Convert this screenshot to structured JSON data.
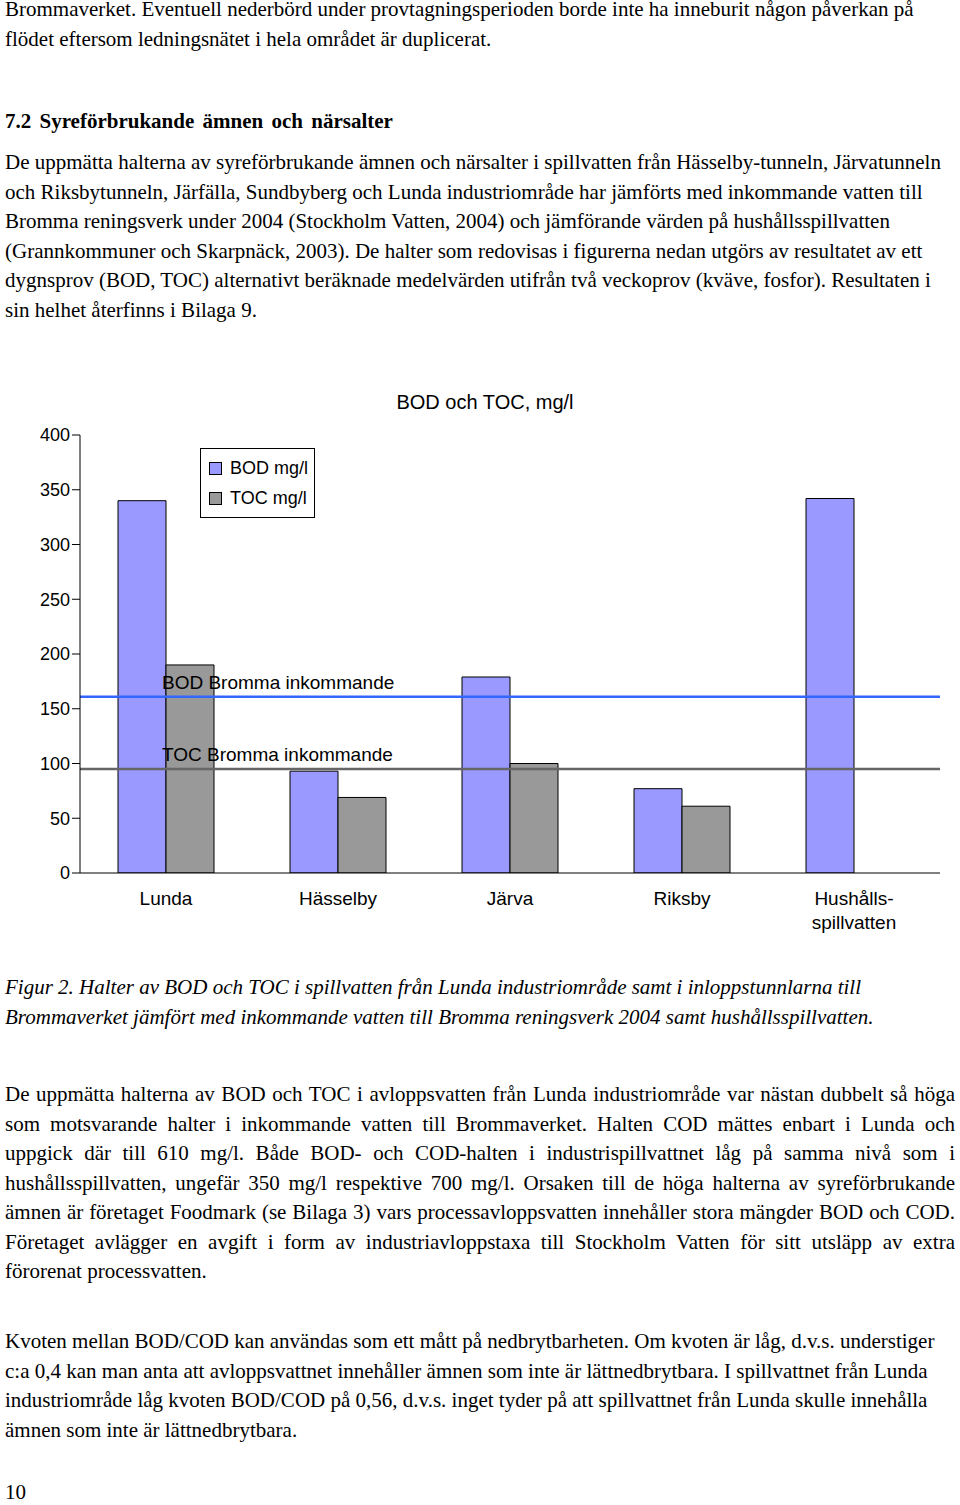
{
  "text_top": "Brommaverket. Eventuell nederbörd under provtagningsperioden borde inte ha inneburit någon påverkan på flödet eftersom ledningsnätet i hela området är duplicerat.",
  "heading": "7.2 Syreförbrukande ämnen och närsalter",
  "paragraph_1": "De uppmätta halterna av syreförbrukande ämnen och närsalter i spillvatten från Hässelby-tunneln, Järvatunneln och Riksbytunneln, Järfälla, Sundbyberg och Lunda industriområde har jämförts med inkommande vatten till Bromma reningsverk under 2004 (Stockholm Vatten, 2004) och jämförande värden på hushållsspillvatten (Grannkommuner och Skarpnäck, 2003). De halter som redovisas i figurerna nedan utgörs av resultatet av ett dygnsprov (BOD, TOC) alternativt beräknade medelvärden utifrån två veckoprov (kväve, fosfor). Resultaten i sin helhet återfinns i Bilaga 9.",
  "chart_data": {
    "type": "bar",
    "title": "BOD och TOC, mg/l",
    "categories": [
      "Lunda",
      "Hässelby",
      "Järva",
      "Riksby",
      "Hushålls-\nspillvatten"
    ],
    "series": [
      {
        "name": "BOD mg/l",
        "color": "#9999ff",
        "values": [
          340,
          93,
          179,
          77,
          342
        ]
      },
      {
        "name": "TOC mg/l",
        "color": "#999999",
        "values": [
          190,
          69,
          100,
          61,
          null
        ]
      }
    ],
    "ylim": [
      0,
      400
    ],
    "yticks": [
      0,
      50,
      100,
      150,
      200,
      250,
      300,
      350,
      400
    ],
    "grid": false,
    "legend": "upper left",
    "reference_lines": [
      {
        "label": "BOD Bromma inkommande",
        "value": 161,
        "color": "#3366ff"
      },
      {
        "label": "TOC Bromma inkommande",
        "value": 95,
        "color": "#666666"
      }
    ]
  },
  "caption": "Figur 2. Halter av BOD och TOC i spillvatten från Lunda industriområde samt i inloppstunnlarna till Brommaverket jämfört med inkommande vatten till Bromma reningsverk 2004 samt hushållsspillvatten.",
  "paragraph_2": "De uppmätta halterna av BOD och TOC i avloppsvatten från Lunda industriområde var nästan dubbelt så höga som motsvarande halter i inkommande vatten till Brommaverket. Halten COD mättes enbart i Lunda och uppgick där till 610 mg/l. Både BOD- och COD-halten i industrispillvattnet låg på samma nivå som i hushållsspillvatten, ungefär 350 mg/l respektive 700 mg/l. Orsaken till de höga halterna av syreförbrukande ämnen är företaget Foodmark (se Bilaga 3) vars processavloppsvatten innehåller stora mängder BOD och COD. Företaget avlägger en avgift i form av industriavloppstaxa till Stockholm Vatten för sitt utsläpp av extra förorenat processvatten.",
  "paragraph_3": "Kvoten mellan BOD/COD kan användas som ett mått på nedbrytbarheten. Om kvoten är låg, d.v.s. understiger c:a 0,4 kan man anta att avloppsvattnet innehåller ämnen som inte är lättnedbrytbara. I spillvattnet från Lunda industriområde låg kvoten BOD/COD på 0,56, d.v.s. inget tyder på att spillvattnet från Lunda skulle innehålla ämnen som inte är lättnedbrytbara.",
  "page_number": "10"
}
